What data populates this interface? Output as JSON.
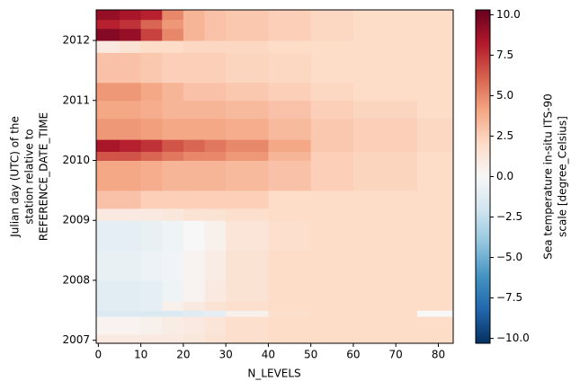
{
  "chart_data": {
    "type": "heatmap",
    "xlabel": "N_LEVELS",
    "ylabel": [
      "Julian day (UTC) of the",
      "station relative to",
      "REFERENCE_DATE_TIME"
    ],
    "colorbar_label": [
      "Sea temperature in-situ ITS-90",
      "scale [degree_Celsius]"
    ],
    "colormap": "RdBu_r",
    "x_edges": [
      -0.5,
      5,
      10,
      15,
      20,
      25,
      30,
      40,
      50,
      60,
      75,
      83.5
    ],
    "y_edges": [
      2006.95,
      2007.1,
      2007.4,
      2007.5,
      2007.65,
      2008.0,
      2008.5,
      2009.0,
      2009.2,
      2009.5,
      2010.0,
      2010.15,
      2010.35,
      2010.7,
      2011.0,
      2011.3,
      2011.8,
      2012.0,
      2012.2,
      2012.35,
      2012.51
    ],
    "values": [
      [
        1.0,
        1.0,
        1.0,
        1.0,
        1.2,
        1.5,
        1.8,
        2.0,
        2.0,
        2.0,
        2.0
      ],
      [
        0.3,
        0.3,
        0.5,
        0.8,
        1.0,
        1.3,
        1.8,
        2.0,
        2.0,
        2.0,
        2.0
      ],
      [
        -1.5,
        -1.5,
        -1.5,
        -1.5,
        -1.3,
        -1.0,
        0.5,
        1.8,
        2.0,
        2.0,
        0.0
      ],
      [
        -1.2,
        -1.2,
        -1.0,
        0.5,
        1.0,
        1.5,
        1.8,
        2.0,
        2.0,
        2.0,
        2.0
      ],
      [
        -1.2,
        -1.2,
        -1.0,
        -0.5,
        0.3,
        1.0,
        1.5,
        2.0,
        2.0,
        2.0,
        2.0
      ],
      [
        -0.8,
        -0.8,
        -0.6,
        -0.3,
        0.3,
        0.8,
        1.5,
        2.0,
        2.0,
        2.0,
        2.0
      ],
      [
        -1.0,
        -1.0,
        -0.8,
        -0.5,
        0.0,
        0.5,
        1.3,
        1.8,
        2.0,
        2.0,
        2.0
      ],
      [
        1.0,
        1.0,
        1.0,
        1.2,
        1.5,
        1.5,
        1.8,
        2.0,
        2.0,
        2.0,
        2.0
      ],
      [
        3.0,
        3.0,
        2.5,
        2.5,
        2.5,
        2.5,
        2.5,
        2.0,
        2.0,
        2.0,
        2.0
      ],
      [
        4.0,
        4.0,
        3.8,
        3.5,
        3.5,
        3.5,
        3.3,
        3.0,
        2.5,
        2.3,
        2.0
      ],
      [
        6.5,
        6.5,
        6.0,
        5.5,
        5.0,
        5.0,
        4.5,
        3.5,
        2.5,
        2.3,
        2.0
      ],
      [
        8.5,
        8.0,
        7.5,
        6.5,
        6.0,
        5.5,
        5.0,
        4.0,
        2.8,
        2.5,
        2.2
      ],
      [
        4.5,
        4.5,
        4.3,
        4.0,
        4.0,
        4.0,
        3.8,
        3.3,
        2.8,
        2.5,
        2.2
      ],
      [
        4.0,
        4.0,
        3.8,
        3.5,
        3.5,
        3.5,
        3.3,
        3.0,
        2.5,
        2.3,
        2.0
      ],
      [
        4.5,
        4.5,
        4.0,
        3.5,
        3.0,
        3.0,
        2.8,
        2.5,
        2.2,
        2.0,
        2.0
      ],
      [
        3.0,
        3.0,
        2.8,
        2.5,
        2.5,
        2.5,
        2.3,
        2.2,
        2.0,
        2.0,
        2.0
      ],
      [
        1.0,
        1.5,
        2.0,
        2.0,
        2.2,
        2.2,
        2.2,
        2.0,
        2.0,
        2.0,
        2.0
      ],
      [
        9.5,
        9.0,
        7.0,
        5.0,
        3.5,
        3.0,
        2.8,
        2.5,
        2.2,
        2.0,
        2.0
      ],
      [
        8.0,
        7.5,
        6.0,
        4.5,
        3.5,
        3.0,
        2.8,
        2.5,
        2.2,
        2.0,
        2.0
      ],
      [
        9.0,
        8.5,
        8.0,
        5.0,
        3.5,
        3.0,
        2.8,
        2.5,
        2.2,
        2.0,
        2.0
      ]
    ],
    "xlim": [
      -0.5,
      83.5
    ],
    "ylim": [
      2006.95,
      2012.51
    ],
    "clim": [
      -10.3,
      10.3
    ],
    "xticks": [
      0,
      10,
      20,
      30,
      40,
      50,
      60,
      70,
      80
    ],
    "yticks": [
      2007,
      2008,
      2009,
      2010,
      2011,
      2012
    ],
    "cticks": [
      {
        "value": -10,
        "label": "−10.0"
      },
      {
        "value": -7.5,
        "label": "−7.5"
      },
      {
        "value": -5,
        "label": "−5.0"
      },
      {
        "value": -2.5,
        "label": "−2.5"
      },
      {
        "value": 0,
        "label": "0.0"
      },
      {
        "value": 2.5,
        "label": "2.5"
      },
      {
        "value": 5,
        "label": "5.0"
      },
      {
        "value": 7.5,
        "label": "7.5"
      },
      {
        "value": 10,
        "label": "10.0"
      }
    ]
  }
}
